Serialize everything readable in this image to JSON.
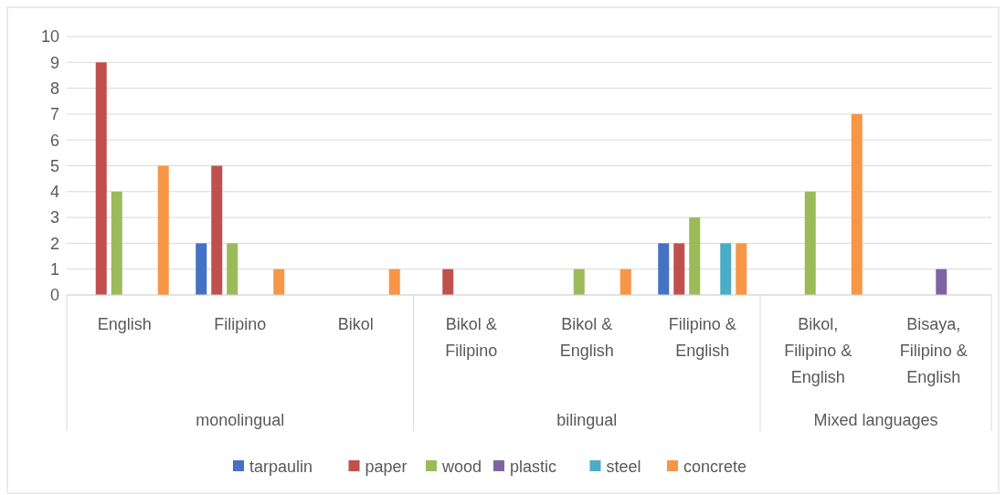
{
  "chart_data": {
    "type": "bar",
    "categories": [
      "English",
      "Filipino",
      "Bikol",
      "Bikol & Filipino",
      "Bikol & English",
      "Filipino & English",
      "Bikol, Filipino & English",
      "Bisaya, Filipino & English"
    ],
    "series": [
      {
        "name": "tarpaulin",
        "color": "#4472c4",
        "values": [
          0,
          2,
          0,
          0,
          0,
          2,
          0,
          0
        ]
      },
      {
        "name": "paper",
        "color": "#c0504d",
        "values": [
          9,
          5,
          0,
          1,
          0,
          2,
          0,
          0
        ]
      },
      {
        "name": "wood",
        "color": "#9bbb59",
        "values": [
          4,
          2,
          0,
          0,
          1,
          3,
          4,
          0
        ]
      },
      {
        "name": "plastic",
        "color": "#8064a2",
        "values": [
          0,
          0,
          0,
          0,
          0,
          0,
          0,
          1
        ]
      },
      {
        "name": "steel",
        "color": "#4bacc6",
        "values": [
          0,
          0,
          0,
          0,
          0,
          2,
          0,
          0
        ]
      },
      {
        "name": "concrete",
        "color": "#f79646",
        "values": [
          5,
          1,
          1,
          0,
          1,
          2,
          7,
          0
        ]
      }
    ],
    "annotations": [
      "monolingual",
      "bilingual",
      "Mixed languages"
    ],
    "ylim": [
      0,
      10
    ],
    "yticks": [
      0,
      1,
      2,
      3,
      4,
      5,
      6,
      7,
      8,
      9,
      10
    ],
    "grid": "y",
    "legend": "bottom"
  }
}
